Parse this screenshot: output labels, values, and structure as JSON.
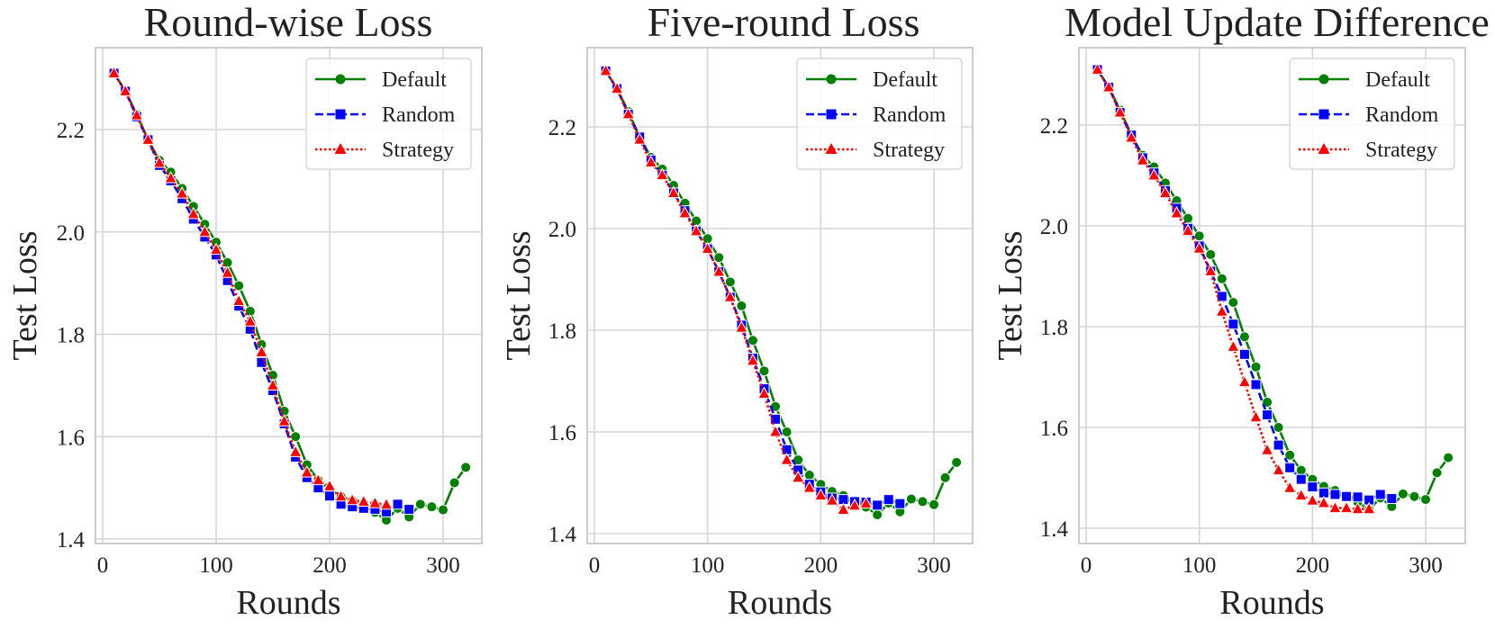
{
  "chart_data": [
    {
      "type": "line",
      "title": "Round-wise Loss",
      "xlabel": "Rounds",
      "ylabel": "Test Loss",
      "xlim": [
        -7,
        335
      ],
      "ylim": [
        1.395,
        2.35
      ],
      "xticks": [
        0,
        100,
        200,
        300
      ],
      "xtick_labels": [
        "0",
        "100",
        "200",
        "300"
      ],
      "yticks": [
        1.4,
        1.6,
        1.8,
        2.0,
        2.2
      ],
      "ytick_labels": [
        "1.4",
        "1.6",
        "1.8",
        "2.0",
        "2.2"
      ],
      "grid": true,
      "legend_position": "top-right",
      "series": [
        {
          "name": "Default",
          "color": "#008000",
          "linestyle": "solid",
          "marker": "circle",
          "x": [
            10,
            20,
            30,
            40,
            50,
            60,
            70,
            80,
            90,
            100,
            110,
            120,
            130,
            140,
            150,
            160,
            170,
            180,
            190,
            200,
            210,
            220,
            230,
            240,
            250,
            260,
            270,
            280,
            290,
            300,
            310,
            320
          ],
          "y": [
            2.31,
            2.275,
            2.23,
            2.18,
            2.14,
            2.117,
            2.085,
            2.05,
            2.015,
            1.98,
            1.94,
            1.895,
            1.845,
            1.78,
            1.72,
            1.65,
            1.6,
            1.545,
            1.515,
            1.497,
            1.483,
            1.475,
            1.465,
            1.452,
            1.437,
            1.46,
            1.443,
            1.468,
            1.463,
            1.457,
            1.51,
            1.54
          ]
        },
        {
          "name": "Random",
          "color": "#0000ff",
          "linestyle": "dashed",
          "marker": "square",
          "x": [
            10,
            20,
            30,
            40,
            50,
            60,
            70,
            80,
            90,
            100,
            110,
            120,
            130,
            140,
            150,
            160,
            170,
            180,
            190,
            200,
            210,
            220,
            230,
            240,
            250,
            260,
            270
          ],
          "y": [
            2.31,
            2.275,
            2.225,
            2.18,
            2.13,
            2.1,
            2.065,
            2.025,
            1.99,
            1.955,
            1.905,
            1.855,
            1.81,
            1.745,
            1.69,
            1.625,
            1.56,
            1.52,
            1.5,
            1.484,
            1.468,
            1.463,
            1.46,
            1.458,
            1.453,
            1.468,
            1.458
          ]
        },
        {
          "name": "Strategy",
          "color": "#ff0000",
          "linestyle": "dotted",
          "marker": "triangle",
          "x": [
            10,
            20,
            30,
            40,
            50,
            60,
            70,
            80,
            90,
            100,
            110,
            120,
            130,
            140,
            150,
            160,
            170,
            180,
            190,
            200,
            210,
            220,
            230,
            240,
            250
          ],
          "y": [
            2.31,
            2.275,
            2.228,
            2.18,
            2.135,
            2.105,
            2.075,
            2.035,
            2.0,
            1.965,
            1.92,
            1.865,
            1.825,
            1.765,
            1.7,
            1.63,
            1.57,
            1.53,
            1.515,
            1.503,
            1.483,
            1.476,
            1.473,
            1.47,
            1.467
          ]
        }
      ]
    },
    {
      "type": "line",
      "title": "Five-round Loss",
      "xlabel": "Rounds",
      "ylabel": "Test Loss",
      "xlim": [
        -7,
        335
      ],
      "ylim": [
        1.383,
        2.35
      ],
      "xticks": [
        0,
        100,
        200,
        300
      ],
      "xtick_labels": [
        "0",
        "100",
        "200",
        "300"
      ],
      "yticks": [
        1.4,
        1.6,
        1.8,
        2.0,
        2.2
      ],
      "ytick_labels": [
        "1.4",
        "1.6",
        "1.8",
        "2.0",
        "2.2"
      ],
      "grid": true,
      "legend_position": "top-right",
      "series": [
        {
          "name": "Default",
          "color": "#008000",
          "linestyle": "solid",
          "marker": "circle",
          "x": [
            10,
            20,
            30,
            40,
            50,
            60,
            70,
            80,
            90,
            100,
            110,
            120,
            130,
            140,
            150,
            160,
            170,
            180,
            190,
            200,
            210,
            220,
            230,
            240,
            250,
            260,
            270,
            280,
            290,
            300,
            310,
            320
          ],
          "y": [
            2.31,
            2.275,
            2.23,
            2.18,
            2.14,
            2.117,
            2.085,
            2.05,
            2.015,
            1.98,
            1.943,
            1.895,
            1.848,
            1.78,
            1.72,
            1.65,
            1.6,
            1.545,
            1.515,
            1.497,
            1.483,
            1.475,
            1.465,
            1.452,
            1.437,
            1.46,
            1.443,
            1.468,
            1.463,
            1.457,
            1.51,
            1.54
          ]
        },
        {
          "name": "Random",
          "color": "#0000ff",
          "linestyle": "dashed",
          "marker": "square",
          "x": [
            10,
            20,
            30,
            40,
            50,
            60,
            70,
            80,
            90,
            100,
            110,
            120,
            130,
            140,
            150,
            160,
            170,
            180,
            190,
            200,
            210,
            220,
            230,
            240,
            250,
            260,
            270
          ],
          "y": [
            2.31,
            2.275,
            2.225,
            2.18,
            2.135,
            2.105,
            2.07,
            2.035,
            1.995,
            1.96,
            1.915,
            1.865,
            1.81,
            1.745,
            1.685,
            1.625,
            1.565,
            1.525,
            1.497,
            1.482,
            1.47,
            1.467,
            1.463,
            1.462,
            1.456,
            1.467,
            1.459
          ]
        },
        {
          "name": "Strategy",
          "color": "#ff0000",
          "linestyle": "dotted",
          "marker": "triangle",
          "x": [
            10,
            20,
            30,
            40,
            50,
            60,
            70,
            80,
            90,
            100,
            110,
            120,
            130,
            140,
            150,
            160,
            170,
            180,
            190,
            200,
            210,
            220,
            230,
            240
          ],
          "y": [
            2.31,
            2.275,
            2.225,
            2.175,
            2.13,
            2.105,
            2.07,
            2.03,
            1.995,
            1.96,
            1.915,
            1.865,
            1.805,
            1.74,
            1.675,
            1.6,
            1.545,
            1.51,
            1.49,
            1.475,
            1.465,
            1.447,
            1.455,
            1.459
          ]
        }
      ]
    },
    {
      "type": "line",
      "title": "Model Update Difference",
      "xlabel": "Rounds",
      "ylabel": "Test Loss",
      "xlim": [
        -7,
        335
      ],
      "ylim": [
        1.37,
        2.35
      ],
      "xticks": [
        0,
        100,
        200,
        300
      ],
      "xtick_labels": [
        "0",
        "100",
        "200",
        "300"
      ],
      "yticks": [
        1.4,
        1.6,
        1.8,
        2.0,
        2.2
      ],
      "ytick_labels": [
        "1.4",
        "1.6",
        "1.8",
        "2.0",
        "2.2"
      ],
      "grid": true,
      "legend_position": "top-right",
      "series": [
        {
          "name": "Default",
          "color": "#008000",
          "linestyle": "solid",
          "marker": "circle",
          "x": [
            10,
            20,
            30,
            40,
            50,
            60,
            70,
            80,
            90,
            100,
            110,
            120,
            130,
            140,
            150,
            160,
            170,
            180,
            190,
            200,
            210,
            220,
            230,
            240,
            250,
            260,
            270,
            280,
            290,
            300,
            310,
            320
          ],
          "y": [
            2.31,
            2.275,
            2.23,
            2.18,
            2.14,
            2.117,
            2.085,
            2.05,
            2.015,
            1.98,
            1.943,
            1.895,
            1.848,
            1.78,
            1.72,
            1.65,
            1.6,
            1.545,
            1.515,
            1.497,
            1.483,
            1.475,
            1.465,
            1.452,
            1.437,
            1.46,
            1.443,
            1.468,
            1.463,
            1.457,
            1.51,
            1.54
          ]
        },
        {
          "name": "Random",
          "color": "#0000ff",
          "linestyle": "dashed",
          "marker": "square",
          "x": [
            10,
            20,
            30,
            40,
            50,
            60,
            70,
            80,
            90,
            100,
            110,
            120,
            130,
            140,
            150,
            160,
            170,
            180,
            190,
            200,
            210,
            220,
            230,
            240,
            250,
            260,
            270
          ],
          "y": [
            2.31,
            2.275,
            2.225,
            2.18,
            2.135,
            2.105,
            2.07,
            2.035,
            1.995,
            1.96,
            1.91,
            1.86,
            1.805,
            1.745,
            1.685,
            1.625,
            1.565,
            1.52,
            1.497,
            1.482,
            1.47,
            1.467,
            1.463,
            1.462,
            1.456,
            1.467,
            1.459
          ]
        },
        {
          "name": "Strategy",
          "color": "#ff0000",
          "linestyle": "dotted",
          "marker": "triangle",
          "x": [
            10,
            20,
            30,
            40,
            50,
            60,
            70,
            80,
            90,
            100,
            110,
            120,
            130,
            140,
            150,
            160,
            170,
            180,
            190,
            200,
            210,
            220,
            230,
            240,
            250
          ],
          "y": [
            2.31,
            2.275,
            2.225,
            2.175,
            2.13,
            2.1,
            2.065,
            2.025,
            1.99,
            1.955,
            1.91,
            1.83,
            1.76,
            1.69,
            1.62,
            1.555,
            1.515,
            1.48,
            1.465,
            1.455,
            1.45,
            1.44,
            1.44,
            1.438,
            1.438
          ]
        }
      ]
    }
  ]
}
